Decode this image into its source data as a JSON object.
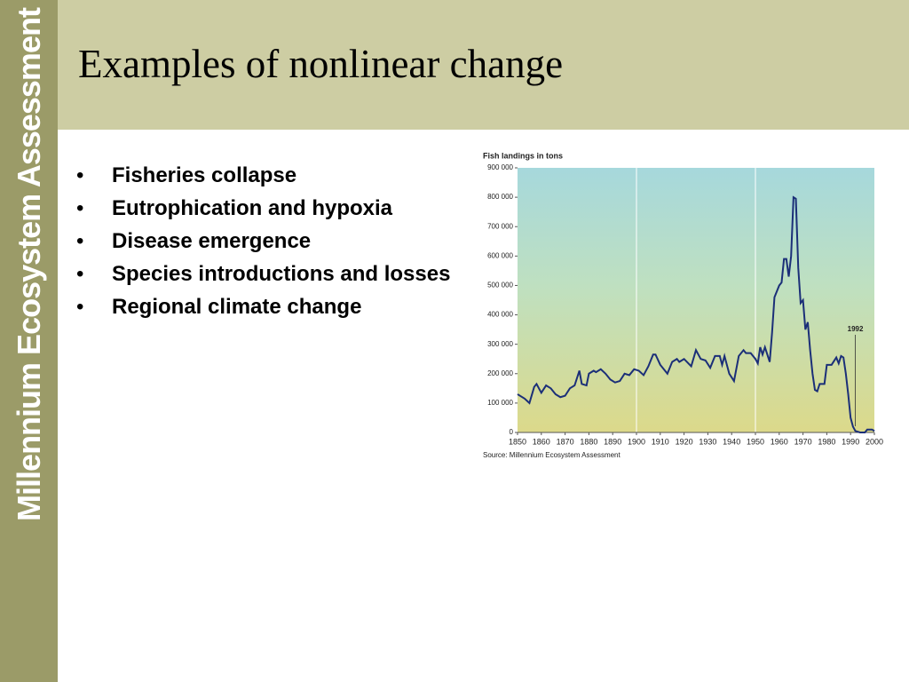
{
  "sidebar": "Millennium Ecosystem Assessment",
  "title": "Examples of nonlinear change",
  "bullets": [
    "Fisheries collapse",
    "Eutrophication and hypoxia",
    "Disease emergence",
    "Species introductions and losses",
    "Regional climate change"
  ],
  "chart_data": {
    "type": "line",
    "title": "Fish landings in tons",
    "source": "Source: Millennium Ecosystem Assessment",
    "x": [
      1850,
      1853,
      1855,
      1857,
      1858,
      1860,
      1862,
      1864,
      1866,
      1868,
      1870,
      1872,
      1874,
      1876,
      1877,
      1879,
      1880,
      1882,
      1883,
      1885,
      1887,
      1889,
      1891,
      1893,
      1895,
      1897,
      1899,
      1901,
      1903,
      1905,
      1907,
      1908,
      1910,
      1913,
      1915,
      1917,
      1918,
      1920,
      1923,
      1925,
      1927,
      1929,
      1931,
      1933,
      1935,
      1936,
      1937,
      1939,
      1941,
      1943,
      1945,
      1946,
      1948,
      1950,
      1951,
      1952,
      1953,
      1954,
      1956,
      1957,
      1958,
      1960,
      1961,
      1962,
      1963,
      1964,
      1965,
      1966,
      1967,
      1968,
      1969,
      1970,
      1971,
      1972,
      1973,
      1974,
      1975,
      1976,
      1977,
      1979,
      1980,
      1982,
      1984,
      1985,
      1986,
      1987,
      1988,
      1989,
      1990,
      1991,
      1992,
      1994,
      1996,
      1997,
      1999,
      2000
    ],
    "values": [
      130000,
      115000,
      100000,
      155000,
      165000,
      135000,
      160000,
      150000,
      130000,
      120000,
      125000,
      150000,
      160000,
      210000,
      165000,
      160000,
      200000,
      210000,
      205000,
      215000,
      200000,
      180000,
      170000,
      175000,
      200000,
      195000,
      215000,
      210000,
      195000,
      225000,
      265000,
      265000,
      230000,
      200000,
      240000,
      250000,
      240000,
      250000,
      225000,
      280000,
      250000,
      245000,
      220000,
      260000,
      260000,
      230000,
      260000,
      200000,
      175000,
      260000,
      280000,
      270000,
      270000,
      250000,
      235000,
      290000,
      265000,
      290000,
      240000,
      340000,
      460000,
      500000,
      510000,
      590000,
      590000,
      530000,
      600000,
      800000,
      795000,
      560000,
      440000,
      450000,
      350000,
      375000,
      280000,
      200000,
      145000,
      140000,
      165000,
      165000,
      230000,
      230000,
      255000,
      235000,
      260000,
      255000,
      200000,
      130000,
      50000,
      20000,
      5000,
      0,
      0,
      10000,
      10000,
      5000
    ],
    "color": "#1b2f78",
    "xlim": [
      1850,
      2000
    ],
    "ylim": [
      0,
      900000
    ],
    "xticks": [
      1850,
      1860,
      1870,
      1880,
      1890,
      1900,
      1910,
      1920,
      1930,
      1940,
      1950,
      1960,
      1970,
      1980,
      1990,
      2000
    ],
    "yticks": [
      {
        "value": 0,
        "label": "0"
      },
      {
        "value": 100000,
        "label": "100 000"
      },
      {
        "value": 200000,
        "label": "200 000"
      },
      {
        "value": 300000,
        "label": "300 000"
      },
      {
        "value": 400000,
        "label": "400 000"
      },
      {
        "value": 500000,
        "label": "500 000"
      },
      {
        "value": 600000,
        "label": "600 000"
      },
      {
        "value": 700000,
        "label": "700 000"
      },
      {
        "value": 800000,
        "label": "800 000"
      },
      {
        "value": 900000,
        "label": "900 000"
      }
    ],
    "xgrid": [
      1900,
      1950
    ],
    "annotation": {
      "x": 1992,
      "text": "1992"
    }
  }
}
